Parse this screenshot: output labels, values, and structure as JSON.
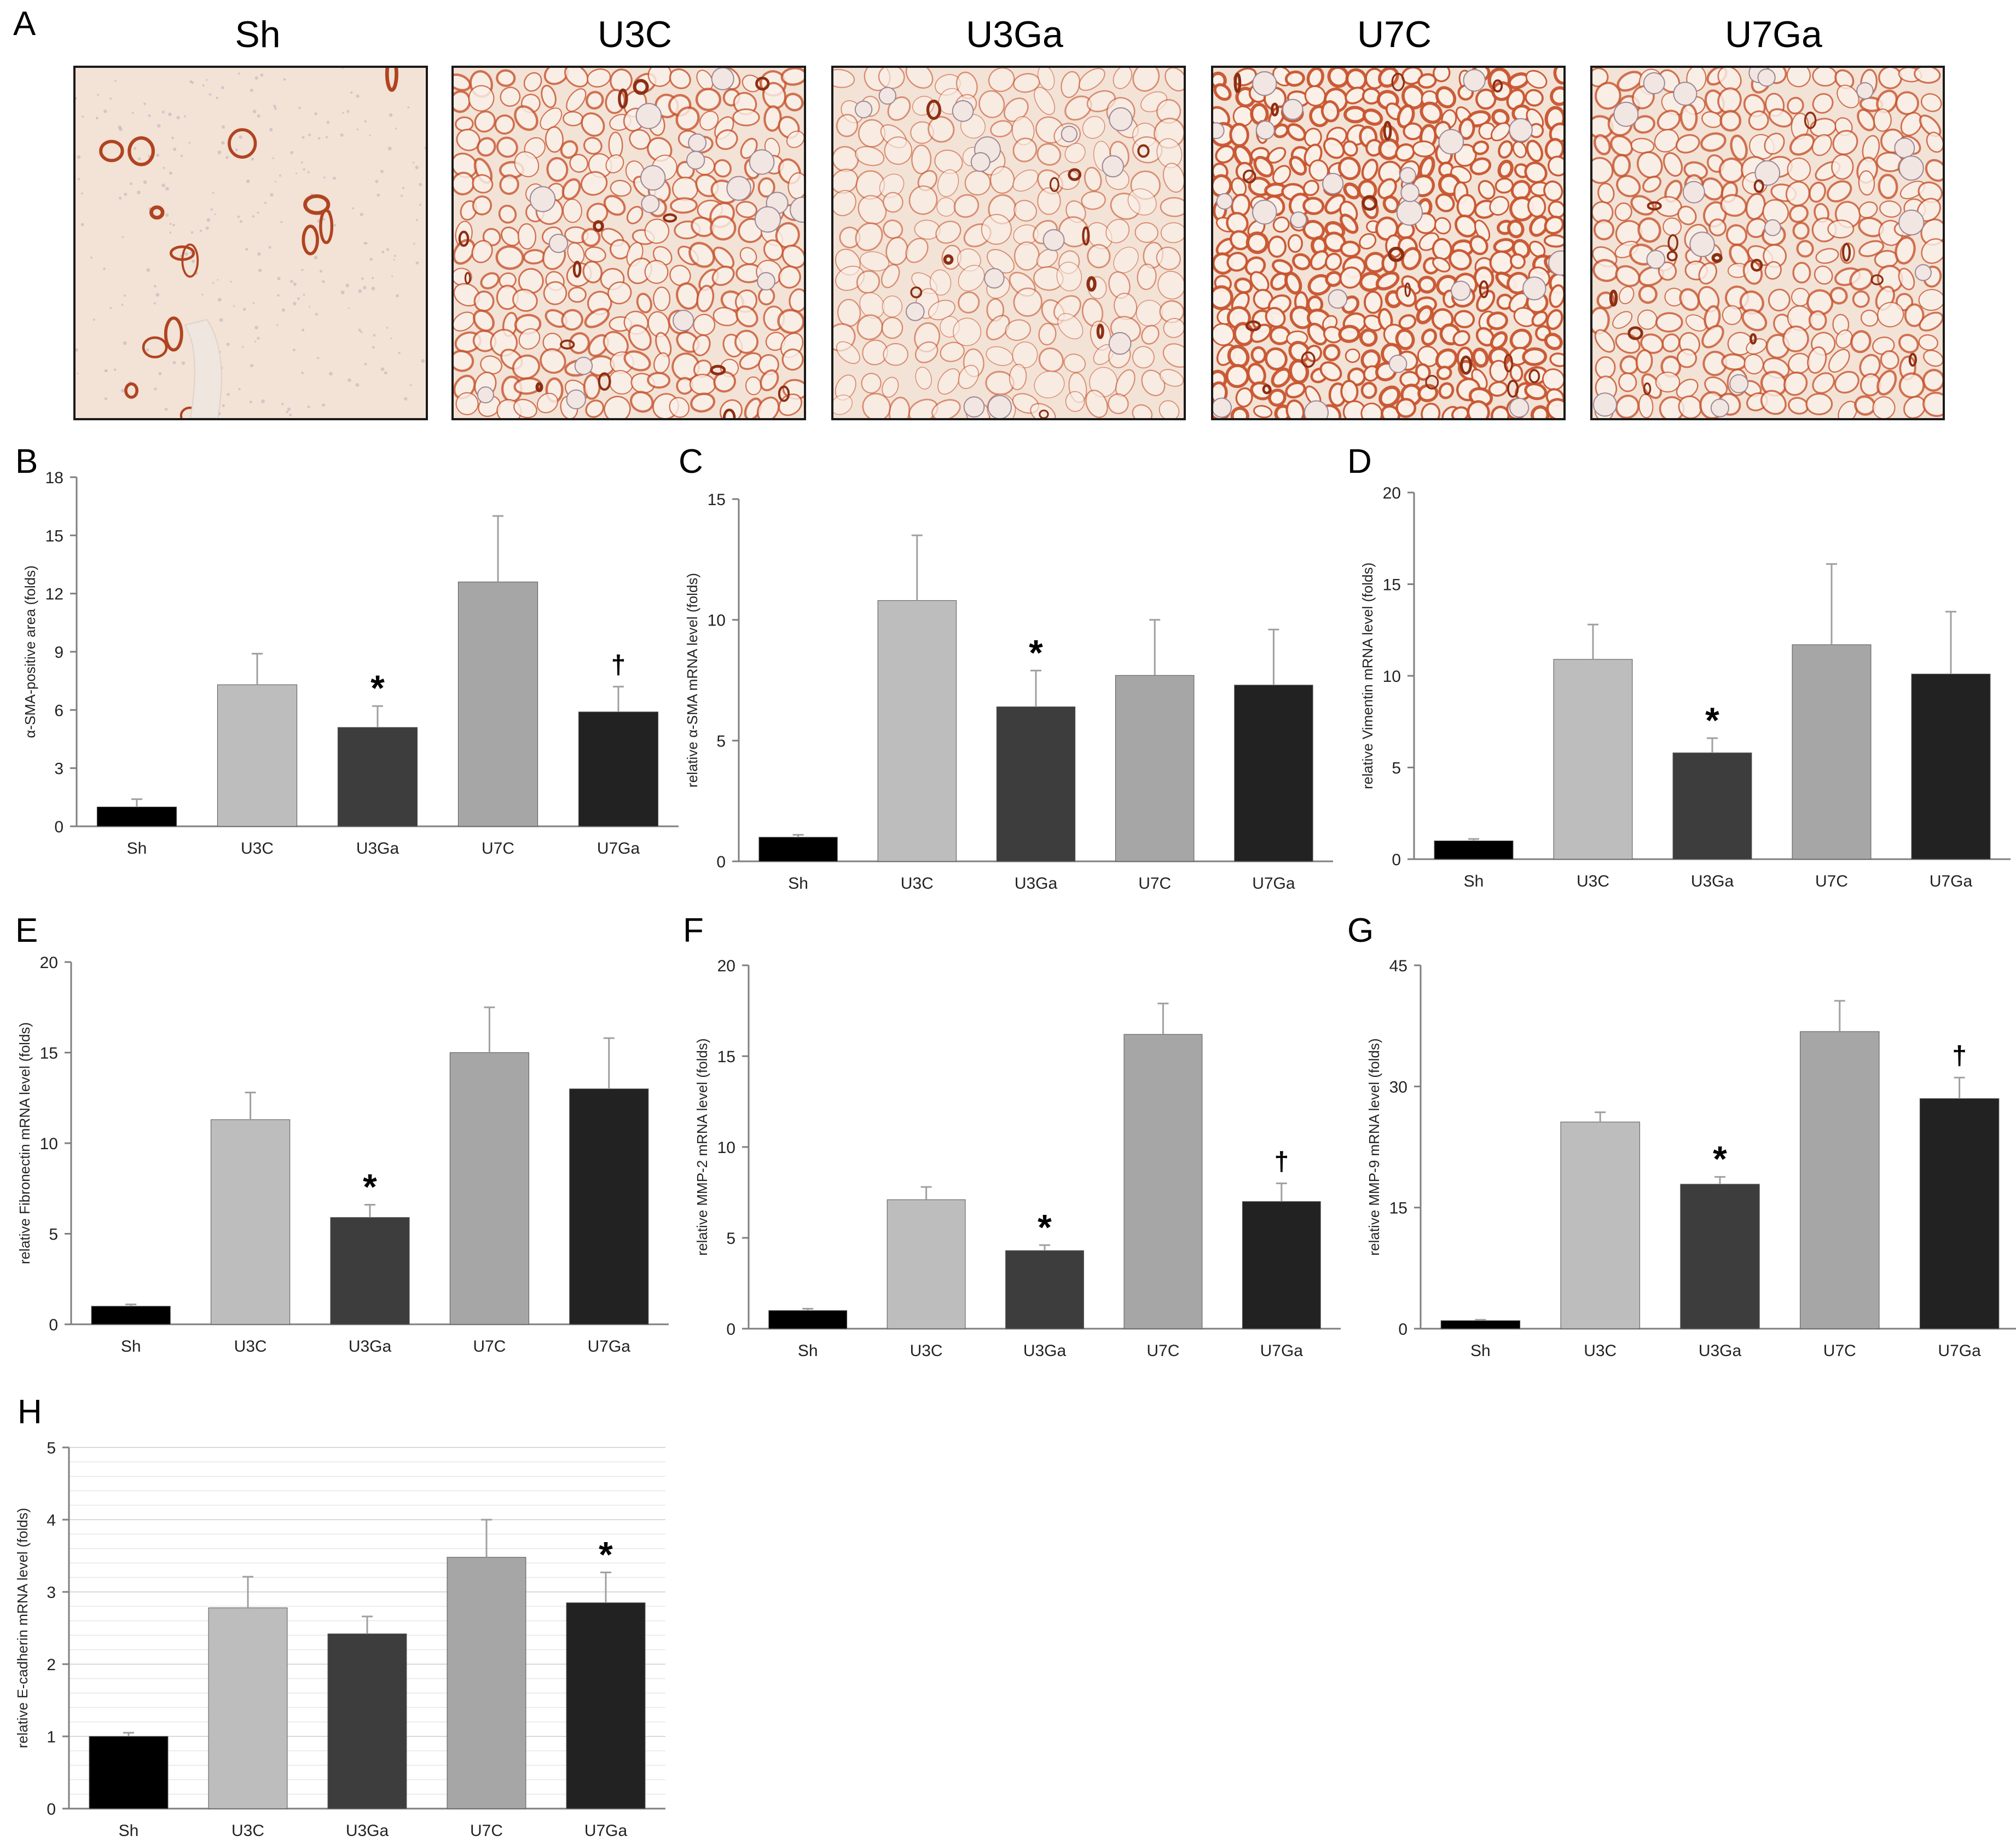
{
  "panel_a": {
    "letter": "A",
    "images": [
      {
        "label": "Sh",
        "stain": "low"
      },
      {
        "label": "U3C",
        "stain": "high"
      },
      {
        "label": "U3Ga",
        "stain": "medium"
      },
      {
        "label": "U7C",
        "stain": "very-high"
      },
      {
        "label": "U7Ga",
        "stain": "high"
      }
    ]
  },
  "chart_data": [
    {
      "panel": "B",
      "type": "bar",
      "title": "",
      "xlabel": "",
      "ylabel": "α-SMA-positive area (folds)",
      "categories": [
        "Sh",
        "U3C",
        "U3Ga",
        "U7C",
        "U7Ga"
      ],
      "values": [
        1.0,
        7.3,
        5.1,
        12.6,
        5.9
      ],
      "errors": [
        0.4,
        1.6,
        1.1,
        3.4,
        1.3
      ],
      "annotations": [
        "",
        "",
        "*",
        "",
        "†"
      ],
      "ylim": [
        0,
        18
      ],
      "yticks": [
        0,
        3,
        6,
        9,
        12,
        15,
        18
      ],
      "grid": false
    },
    {
      "panel": "C",
      "type": "bar",
      "title": "",
      "xlabel": "",
      "ylabel": "relative α-SMA mRNA level (folds)",
      "categories": [
        "Sh",
        "U3C",
        "U3Ga",
        "U7C",
        "U7Ga"
      ],
      "values": [
        1.0,
        10.8,
        6.4,
        7.7,
        7.3
      ],
      "errors": [
        0.1,
        2.7,
        1.5,
        2.3,
        2.3
      ],
      "annotations": [
        "",
        "",
        "*",
        "",
        ""
      ],
      "ylim": [
        0,
        15
      ],
      "yticks": [
        0,
        5,
        10,
        15
      ],
      "grid": false
    },
    {
      "panel": "D",
      "type": "bar",
      "title": "",
      "xlabel": "",
      "ylabel": "relative Vimentin mRNA level (folds)",
      "categories": [
        "Sh",
        "U3C",
        "U3Ga",
        "U7C",
        "U7Ga"
      ],
      "values": [
        1.0,
        10.9,
        5.8,
        11.7,
        10.1
      ],
      "errors": [
        0.1,
        1.9,
        0.8,
        4.4,
        3.4
      ],
      "annotations": [
        "",
        "",
        "*",
        "",
        ""
      ],
      "ylim": [
        0,
        20
      ],
      "yticks": [
        0,
        5,
        10,
        15,
        20
      ],
      "grid": false
    },
    {
      "panel": "E",
      "type": "bar",
      "title": "",
      "xlabel": "",
      "ylabel": "relative Fibronectin mRNA level (folds)",
      "categories": [
        "Sh",
        "U3C",
        "U3Ga",
        "U7C",
        "U7Ga"
      ],
      "values": [
        1.0,
        11.3,
        5.9,
        15.0,
        13.0
      ],
      "errors": [
        0.1,
        1.5,
        0.7,
        2.5,
        2.8
      ],
      "annotations": [
        "",
        "",
        "*",
        "",
        ""
      ],
      "ylim": [
        0,
        20
      ],
      "yticks": [
        0,
        5,
        10,
        15,
        20
      ],
      "grid": false
    },
    {
      "panel": "F",
      "type": "bar",
      "title": "",
      "xlabel": "",
      "ylabel": "relative MMP-2 mRNA level (folds)",
      "categories": [
        "Sh",
        "U3C",
        "U3Ga",
        "U7C",
        "U7Ga"
      ],
      "values": [
        1.0,
        7.1,
        4.3,
        16.2,
        7.0
      ],
      "errors": [
        0.1,
        0.7,
        0.3,
        1.7,
        1.0
      ],
      "annotations": [
        "",
        "",
        "*",
        "",
        "†"
      ],
      "ylim": [
        0,
        20
      ],
      "yticks": [
        0,
        5,
        10,
        15,
        20
      ],
      "grid": false
    },
    {
      "panel": "G",
      "type": "bar",
      "title": "",
      "xlabel": "",
      "ylabel": "relative MMP-9 mRNA level (folds)",
      "categories": [
        "Sh",
        "U3C",
        "U3Ga",
        "U7C",
        "U7Ga"
      ],
      "values": [
        1.0,
        25.6,
        17.9,
        36.8,
        28.5
      ],
      "errors": [
        0.1,
        1.2,
        0.9,
        3.8,
        2.6
      ],
      "annotations": [
        "",
        "",
        "*",
        "",
        "†"
      ],
      "ylim": [
        0,
        45
      ],
      "yticks": [
        0,
        15,
        30,
        45
      ],
      "grid": false
    },
    {
      "panel": "H",
      "type": "bar",
      "title": "",
      "xlabel": "",
      "ylabel": "relative E-cadherin mRNA level (folds)",
      "categories": [
        "Sh",
        "U3C",
        "U3Ga",
        "U7C",
        "U7Ga"
      ],
      "values": [
        1.0,
        2.78,
        2.42,
        3.48,
        2.85
      ],
      "errors": [
        0.05,
        0.43,
        0.24,
        0.52,
        0.42
      ],
      "annotations": [
        "",
        "",
        "",
        "",
        "*"
      ],
      "ylim": [
        0,
        5
      ],
      "yticks": [
        0,
        1,
        2,
        3,
        4,
        5
      ],
      "grid": true
    }
  ],
  "colors": {
    "bars": [
      "#000000",
      "#bdbdbd",
      "#3d3d3d",
      "#a6a6a6",
      "#222222"
    ],
    "errorbar": "#a0a0a0",
    "axis": "#7f7f7f",
    "stain": "#c8552f",
    "tissue": "#f3e2d6"
  }
}
